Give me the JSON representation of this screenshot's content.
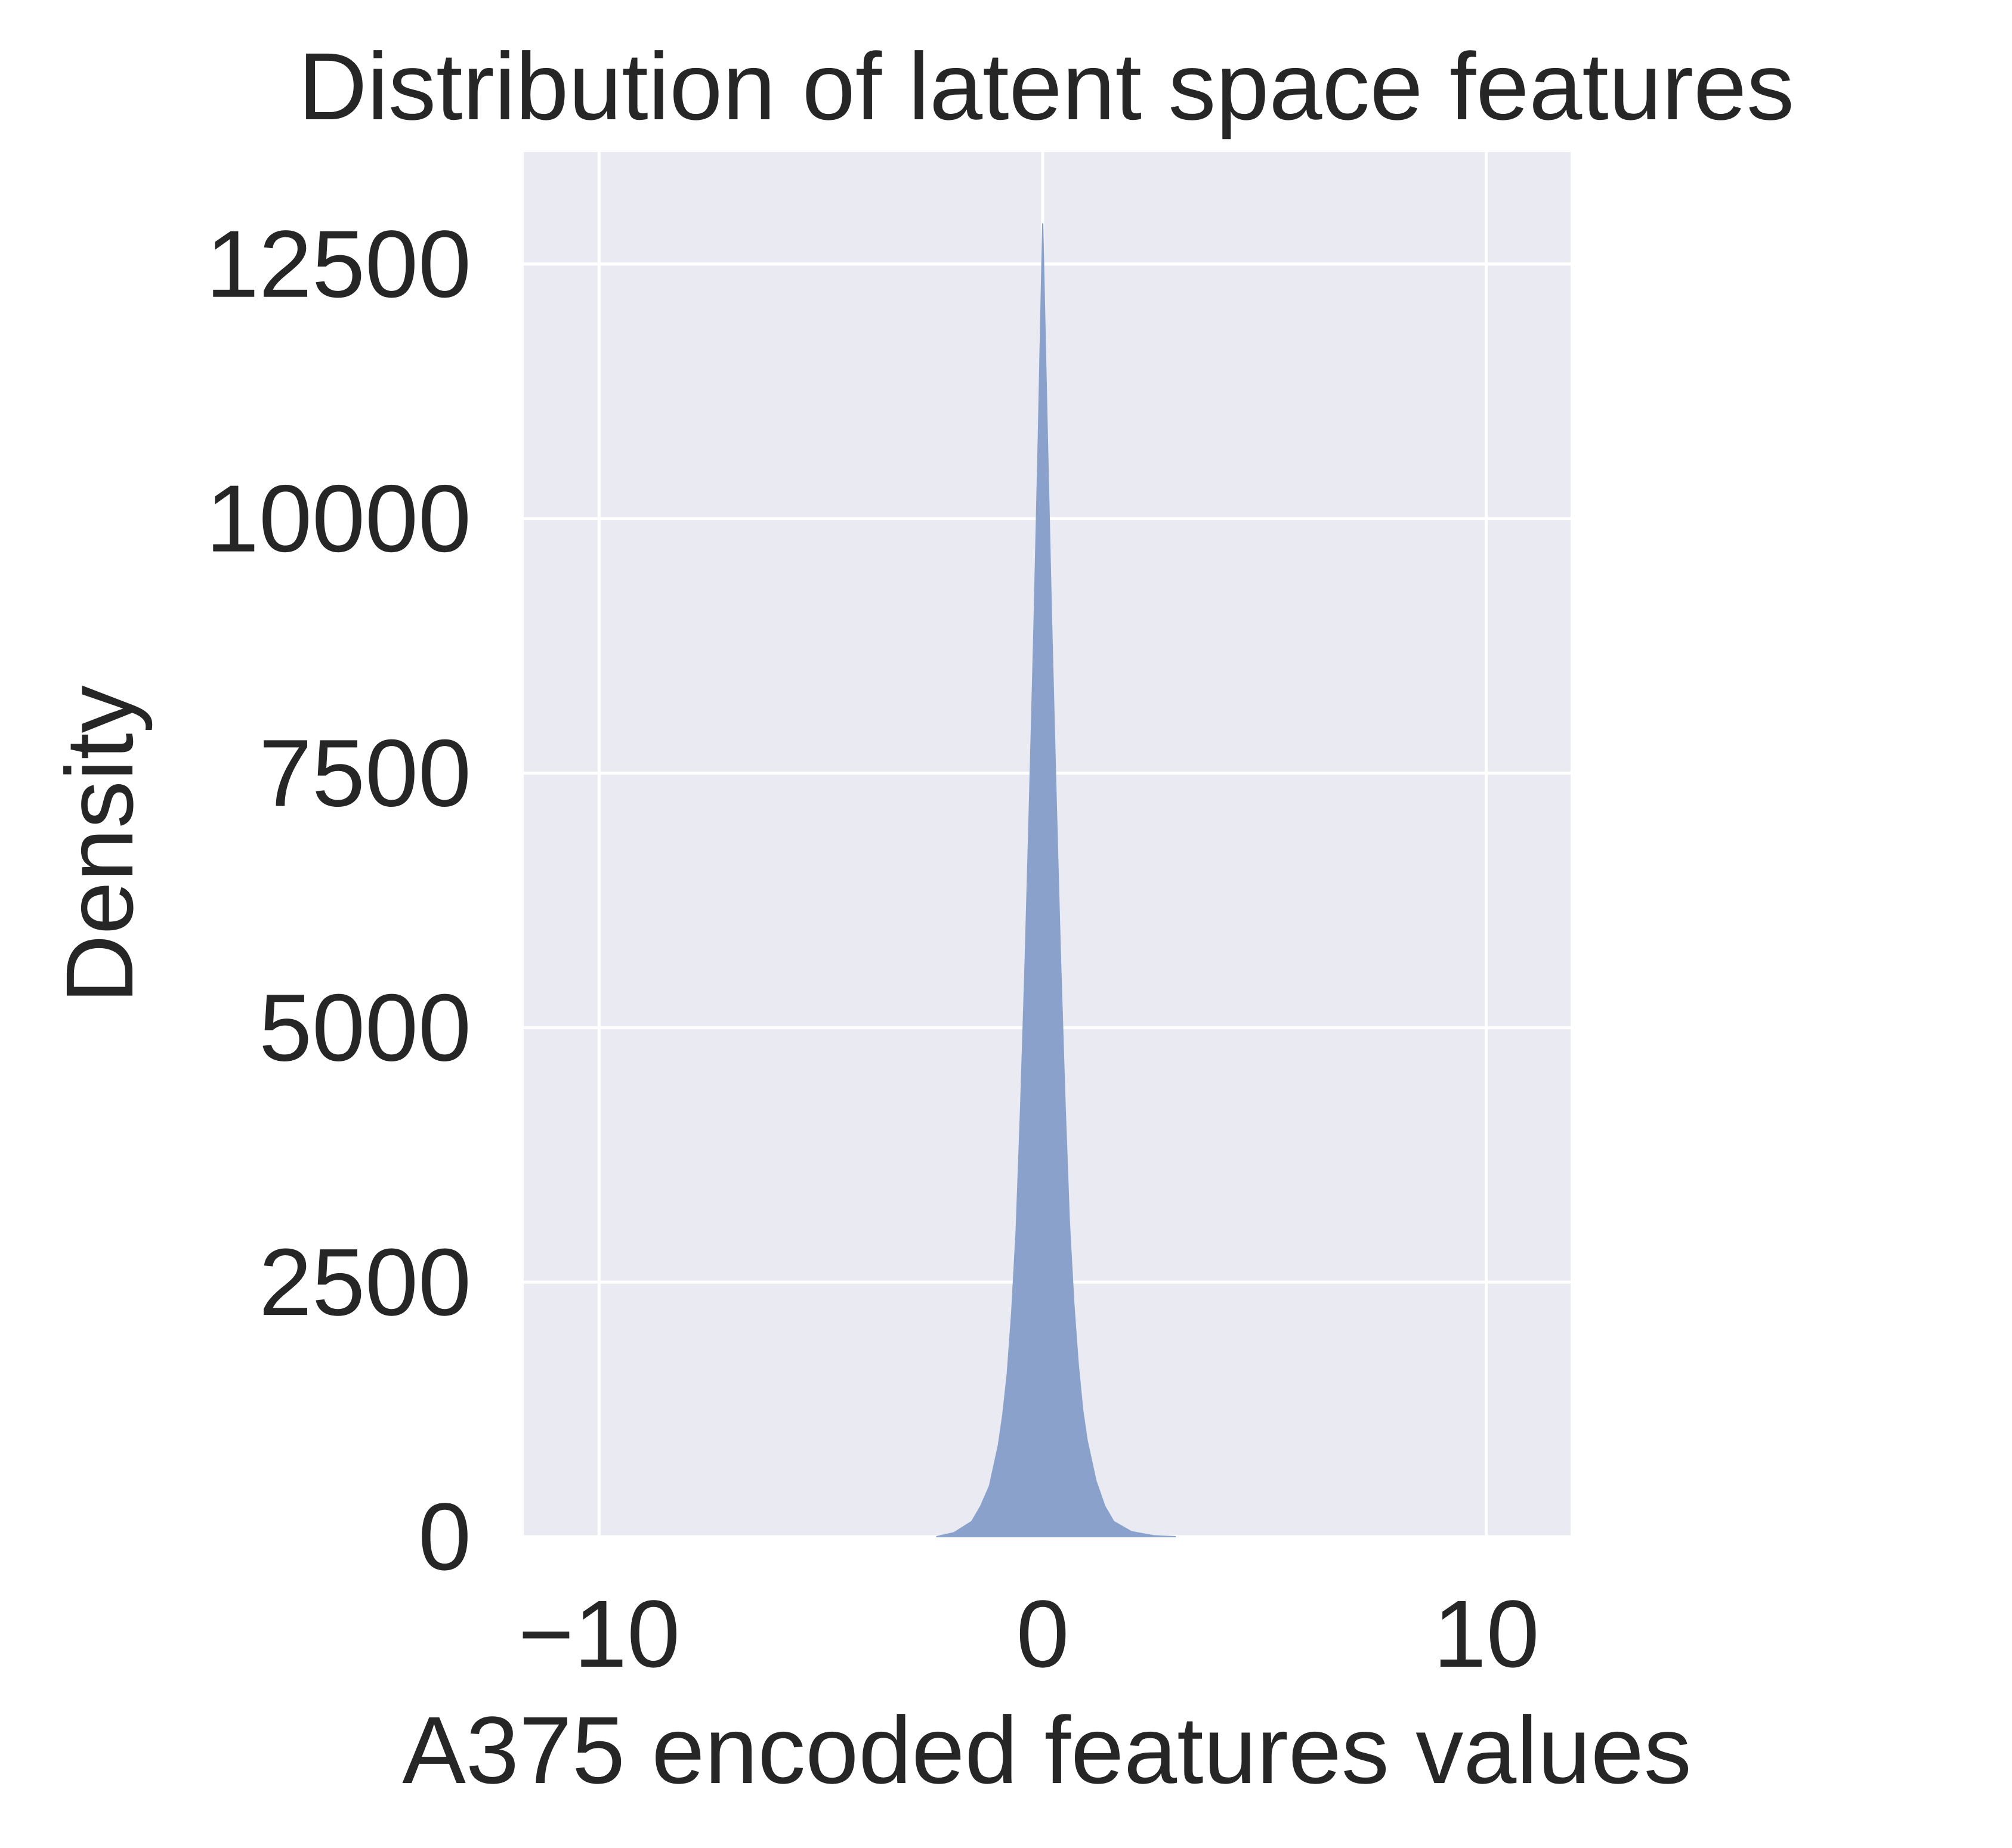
{
  "chart_data": {
    "type": "histogram",
    "title": "Distribution of latent space features",
    "xlabel": "A375 encoded features values",
    "ylabel": "Density",
    "xlim": [
      -11.7,
      11.9
    ],
    "ylim": [
      0,
      13600
    ],
    "xticks": [
      -10,
      0,
      10
    ],
    "xtick_labels": [
      "−10",
      "0",
      "10"
    ],
    "yticks": [
      0,
      2500,
      5000,
      7500,
      10000,
      12500
    ],
    "ytick_labels": [
      "0",
      "2500",
      "5000",
      "7500",
      "10000",
      "12500"
    ],
    "grid": true,
    "legend": "none",
    "distribution": {
      "x": [
        -2.4,
        -2.0,
        -1.6,
        -1.4,
        -1.2,
        -1.0,
        -0.9,
        -0.8,
        -0.7,
        -0.6,
        -0.5,
        -0.4,
        -0.3,
        -0.2,
        -0.1,
        0.0,
        0.1,
        0.2,
        0.3,
        0.4,
        0.5,
        0.6,
        0.7,
        0.8,
        0.9,
        1.0,
        1.2,
        1.4,
        1.6,
        2.0,
        2.5,
        3.0
      ],
      "density": [
        0,
        40,
        150,
        300,
        500,
        900,
        1200,
        1600,
        2200,
        3000,
        4200,
        5600,
        7200,
        8900,
        10800,
        12900,
        10900,
        9000,
        7300,
        5700,
        4300,
        3100,
        2300,
        1700,
        1250,
        950,
        550,
        300,
        150,
        50,
        10,
        0
      ]
    },
    "colors": {
      "background": "#eaeaf2",
      "grid": "#ffffff",
      "fill": "#8aa2cb",
      "text": "#262626"
    }
  }
}
